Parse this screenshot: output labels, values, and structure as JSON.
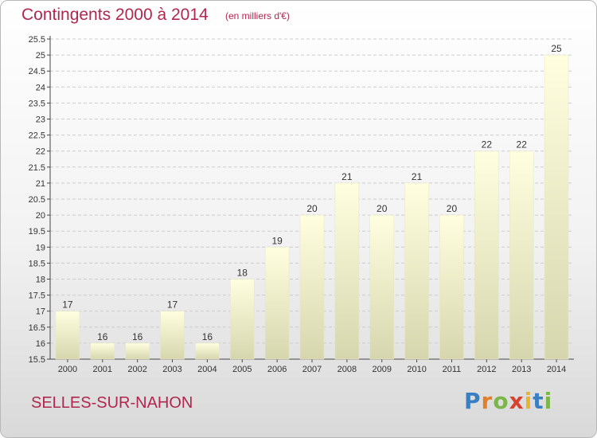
{
  "header": {
    "title": "Contingents 2000 à 2014",
    "subtitle": "(en milliers d'€)"
  },
  "footer": {
    "commune": "SELLES-SUR-NAHON",
    "brand": "Proxiti"
  },
  "colors": {
    "title": "#b0274f",
    "bar_top": "#ffffe0",
    "bar_bottom": "#d6d6ae",
    "grid": "#cccccc"
  },
  "chart_data": {
    "type": "bar",
    "title": "Contingents 2000 à 2014",
    "subtitle": "(en milliers d'€)",
    "xlabel": "",
    "ylabel": "",
    "categories": [
      "2000",
      "2001",
      "2002",
      "2003",
      "2004",
      "2005",
      "2006",
      "2007",
      "2008",
      "2009",
      "2010",
      "2011",
      "2012",
      "2013",
      "2014"
    ],
    "values": [
      17,
      16,
      16,
      17,
      16,
      18,
      19,
      20,
      21,
      20,
      21,
      20,
      22,
      22,
      25
    ],
    "ylim": [
      15.5,
      25.5
    ],
    "yticks": [
      "15.5",
      "16",
      "16.5",
      "17",
      "17.5",
      "18",
      "18.5",
      "19",
      "19.5",
      "20",
      "20.5",
      "21",
      "21.5",
      "22",
      "22.5",
      "23",
      "23.5",
      "24",
      "24.5",
      "25",
      "25.5"
    ],
    "grid": true,
    "legend": "none"
  }
}
